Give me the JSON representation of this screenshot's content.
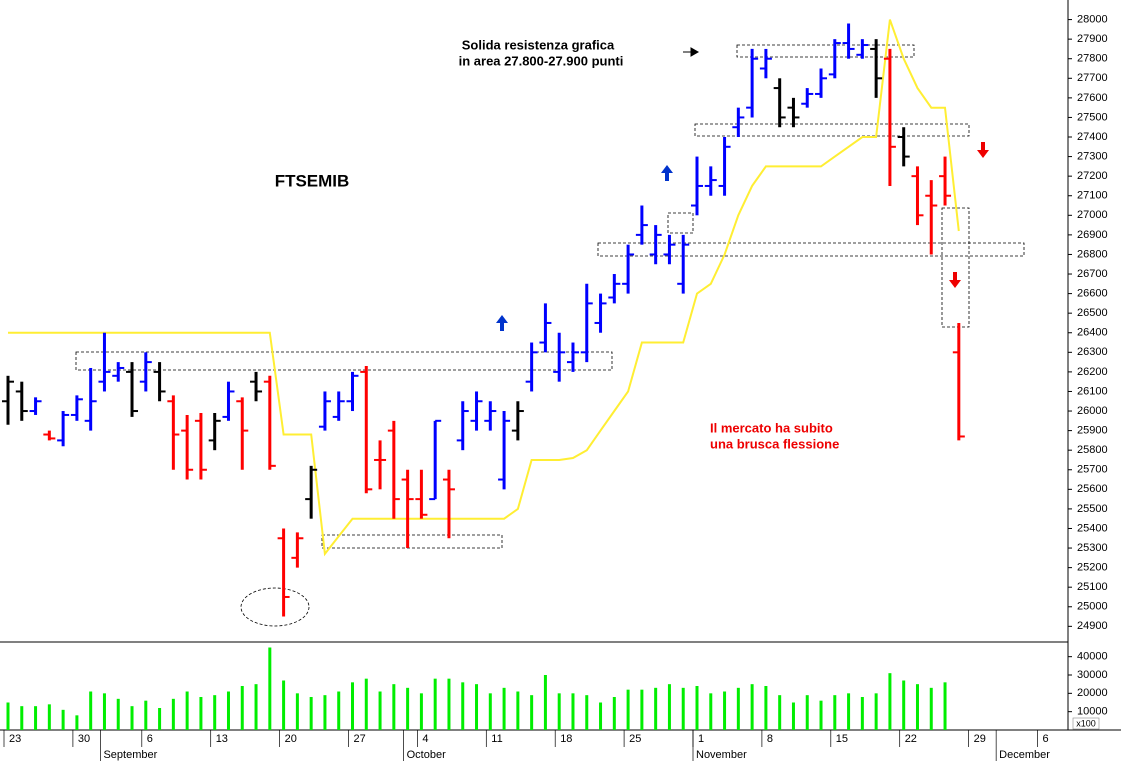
{
  "chart_data": [
    {
      "type": "ohlc",
      "title": "FTSEMIB",
      "high": [
        26180,
        26150,
        26070,
        25900,
        26000,
        26080,
        26220,
        26400,
        26250,
        26250,
        26300,
        26250,
        26080,
        25980,
        25990,
        25990,
        26150,
        26070,
        26200,
        26180,
        25400,
        25380,
        25720,
        26100,
        26100,
        26200,
        26230,
        25850,
        25950,
        25700,
        25700,
        25950,
        25700,
        26050,
        26100,
        26050,
        26000,
        26050,
        26350,
        26550,
        26400,
        26350,
        26650,
        26600,
        26700,
        26850,
        27050,
        26950,
        26900,
        26900,
        27300,
        27250,
        27400,
        27550,
        27850,
        27850,
        27700,
        27600,
        27650,
        27750,
        27900,
        27980,
        27900,
        27900,
        27850,
        27450,
        27250,
        27180,
        27300,
        26450
      ],
      "low": [
        25930,
        25950,
        25980,
        25850,
        25820,
        25950,
        25900,
        26100,
        26150,
        25970,
        26100,
        26050,
        25700,
        25650,
        25650,
        25800,
        25950,
        25700,
        26050,
        25700,
        24950,
        25200,
        25450,
        25900,
        25950,
        26000,
        25580,
        25600,
        25450,
        25300,
        25450,
        25550,
        25350,
        25800,
        25900,
        25900,
        25600,
        25850,
        26100,
        26300,
        26150,
        26200,
        26250,
        26400,
        26550,
        26600,
        26850,
        26750,
        26750,
        26600,
        27000,
        27100,
        27100,
        27400,
        27500,
        27700,
        27450,
        27450,
        27550,
        27600,
        27700,
        27800,
        27800,
        27600,
        27150,
        27250,
        26950,
        26800,
        27050,
        25850
      ],
      "open": [
        26050,
        26100,
        26000,
        25880,
        25850,
        25980,
        25950,
        26150,
        26180,
        26200,
        26150,
        26200,
        26050,
        25900,
        25950,
        25850,
        25970,
        26050,
        26150,
        26150,
        25350,
        25250,
        25550,
        25920,
        25970,
        26050,
        26200,
        25750,
        25900,
        25650,
        25550,
        25550,
        25650,
        25850,
        25950,
        25950,
        25650,
        25900,
        26150,
        26350,
        26200,
        26250,
        26300,
        26450,
        26580,
        26650,
        26900,
        26800,
        26800,
        26650,
        27050,
        27150,
        27150,
        27450,
        27550,
        27750,
        27650,
        27550,
        27570,
        27620,
        27720,
        27880,
        27820,
        27850,
        27800,
        27400,
        27200,
        27100,
        27200,
        26300
      ],
      "close": [
        26150,
        26000,
        26050,
        25860,
        25980,
        26060,
        26050,
        26200,
        26220,
        26000,
        26250,
        26100,
        25880,
        25700,
        25700,
        25950,
        26100,
        25900,
        26100,
        25720,
        25050,
        25350,
        25700,
        26050,
        26050,
        26180,
        25600,
        25750,
        25550,
        25550,
        25470,
        25950,
        25600,
        26000,
        26050,
        26000,
        25950,
        26000,
        26300,
        26450,
        26300,
        26300,
        26550,
        26550,
        26650,
        26800,
        26950,
        26900,
        26850,
        26850,
        27150,
        27180,
        27350,
        27500,
        27800,
        27800,
        27500,
        27500,
        27620,
        27700,
        27880,
        27850,
        27870,
        27700,
        27350,
        27300,
        27000,
        27050,
        27100,
        25870
      ],
      "bar_colors": [
        "#000000",
        "#000000",
        "#0000ff",
        "#ff0000",
        "#0000ff",
        "#0000ff",
        "#0000ff",
        "#0000ff",
        "#0000ff",
        "#000000",
        "#0000ff",
        "#000000",
        "#ff0000",
        "#ff0000",
        "#ff0000",
        "#000000",
        "#0000ff",
        "#ff0000",
        "#000000",
        "#ff0000",
        "#ff0000",
        "#ff0000",
        "#000000",
        "#0000ff",
        "#0000ff",
        "#0000ff",
        "#ff0000",
        "#ff0000",
        "#ff0000",
        "#ff0000",
        "#ff0000",
        "#0000ff",
        "#ff0000",
        "#0000ff",
        "#0000ff",
        "#0000ff",
        "#0000ff",
        "#000000",
        "#0000ff",
        "#0000ff",
        "#0000ff",
        "#0000ff",
        "#0000ff",
        "#0000ff",
        "#0000ff",
        "#0000ff",
        "#0000ff",
        "#0000ff",
        "#0000ff",
        "#0000ff",
        "#0000ff",
        "#0000ff",
        "#0000ff",
        "#0000ff",
        "#0000ff",
        "#0000ff",
        "#000000",
        "#000000",
        "#0000ff",
        "#0000ff",
        "#0000ff",
        "#0000ff",
        "#0000ff",
        "#000000",
        "#ff0000",
        "#000000",
        "#ff0000",
        "#ff0000",
        "#ff0000",
        "#ff0000"
      ],
      "line": {
        "color": "#ffee33",
        "values": [
          26400,
          26400,
          26400,
          26400,
          26400,
          26400,
          26400,
          26400,
          26400,
          26400,
          26400,
          26400,
          26400,
          26400,
          26400,
          26400,
          26400,
          26400,
          26400,
          26400,
          25880,
          25880,
          25880,
          25270,
          25360,
          25450,
          25450,
          25450,
          25450,
          25450,
          25450,
          25450,
          25450,
          25450,
          25450,
          25450,
          25450,
          25500,
          25750,
          25750,
          25750,
          25760,
          25800,
          25900,
          26000,
          26100,
          26350,
          26350,
          26350,
          26350,
          26600,
          26650,
          26800,
          27000,
          27150,
          27250,
          27250,
          27250,
          27250,
          27250,
          27300,
          27350,
          27400,
          27400,
          28000,
          27800,
          27650,
          27550,
          27550,
          26920
        ]
      },
      "ylim": [
        24820,
        28100
      ],
      "yticks": [
        24900,
        25000,
        25100,
        25200,
        25300,
        25400,
        25500,
        25600,
        25700,
        25800,
        25900,
        26000,
        26100,
        26200,
        26300,
        26400,
        26500,
        26600,
        26700,
        26800,
        26900,
        27000,
        27100,
        27200,
        27300,
        27400,
        27500,
        27600,
        27700,
        27800,
        27900,
        28000
      ],
      "annotations": [
        "Solida resistenza grafica",
        "in area 27.800-27.900 punti",
        "Il mercato ha subito",
        "una brusca flessione"
      ]
    },
    {
      "type": "bar",
      "color": "#00ee00",
      "values": [
        15000,
        13000,
        13000,
        14000,
        11000,
        8000,
        21000,
        20000,
        17000,
        13000,
        16000,
        12000,
        17000,
        21000,
        18000,
        19000,
        21000,
        24000,
        25000,
        45000,
        27000,
        20000,
        18000,
        19000,
        21000,
        26000,
        28000,
        21000,
        25000,
        23000,
        20000,
        28000,
        28000,
        26000,
        25000,
        20000,
        23000,
        21000,
        19000,
        30000,
        20000,
        20000,
        19000,
        15000,
        18000,
        22000,
        22000,
        23000,
        25000,
        23000,
        24000,
        20000,
        21000,
        23000,
        25000,
        24000,
        19000,
        15000,
        19000,
        16000,
        19000,
        20000,
        18000,
        20000,
        31000,
        27000,
        25000,
        23000,
        26000,
        null,
        null,
        null,
        null,
        null,
        null,
        null
      ],
      "categories": [
        "23",
        null,
        null,
        null,
        null,
        "30",
        null,
        null,
        null,
        null,
        "6",
        null,
        null,
        null,
        null,
        "13",
        null,
        null,
        null,
        null,
        "20",
        null,
        null,
        null,
        null,
        "27",
        null,
        null,
        null,
        null,
        "4",
        null,
        null,
        null,
        null,
        "11",
        null,
        null,
        null,
        null,
        "18",
        null,
        null,
        null,
        null,
        "25",
        null,
        null,
        null,
        null,
        "1",
        null,
        null,
        null,
        null,
        "8",
        null,
        null,
        null,
        null,
        "15",
        null,
        null,
        null,
        null,
        "22",
        null,
        null,
        null,
        null,
        "29",
        null,
        null,
        null,
        null,
        "6"
      ],
      "month_labels": [
        null,
        null,
        null,
        null,
        null,
        null,
        null,
        "September",
        null,
        null,
        null,
        null,
        null,
        null,
        null,
        null,
        null,
        null,
        null,
        null,
        null,
        null,
        null,
        null,
        null,
        null,
        null,
        null,
        null,
        "October",
        null,
        null,
        null,
        null,
        null,
        null,
        null,
        null,
        null,
        null,
        null,
        null,
        null,
        null,
        null,
        null,
        null,
        null,
        null,
        null,
        "November",
        null,
        null,
        null,
        null,
        null,
        null,
        null,
        null,
        null,
        null,
        null,
        null,
        null,
        null,
        null,
        null,
        null,
        null,
        null,
        null,
        null,
        "December",
        null,
        null,
        null
      ],
      "ylim": [
        0,
        48000
      ],
      "yticks": [
        10000,
        20000,
        30000,
        40000
      ],
      "unit_label": "x100"
    }
  ]
}
